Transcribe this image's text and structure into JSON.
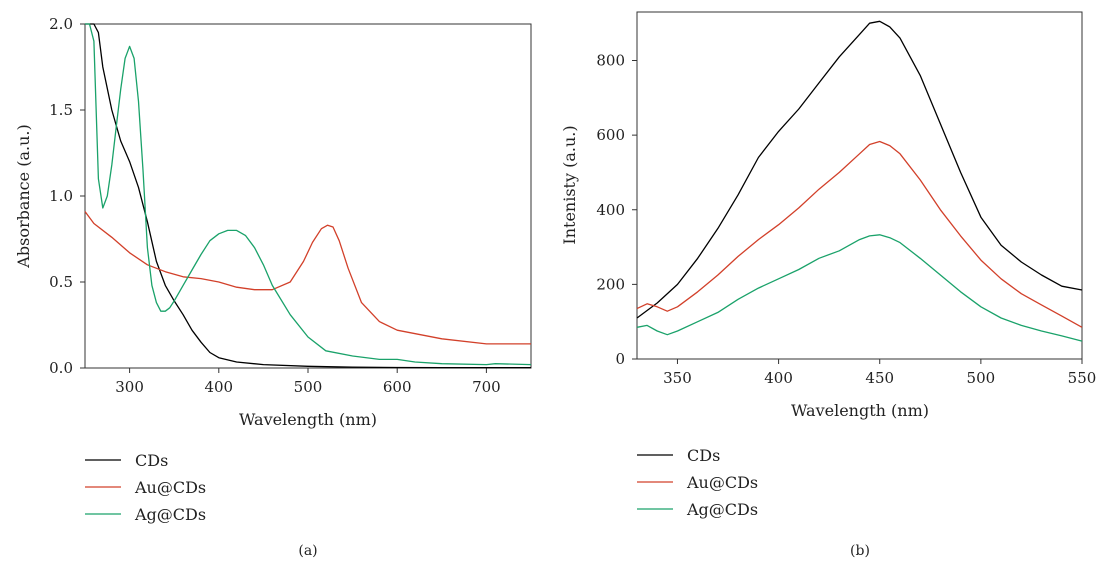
{
  "chart_data": [
    {
      "type": "line",
      "panel_label": "(a)",
      "xlabel": "Wavelength (nm)",
      "ylabel": "Absorbance (a.u.)",
      "xlim": [
        250,
        750
      ],
      "ylim": [
        0,
        2.0
      ],
      "xticks": [
        300,
        400,
        500,
        600,
        700
      ],
      "yticks": [
        0.0,
        0.5,
        1.0,
        1.5,
        2.0
      ],
      "ytick_labels": [
        "0.0",
        "0.5",
        "1.0",
        "1.5",
        "2.0"
      ],
      "legend_position": "below-left",
      "series": [
        {
          "name": "CDs",
          "color": "#000000",
          "x": [
            250,
            255,
            260,
            265,
            270,
            280,
            290,
            300,
            310,
            320,
            330,
            340,
            350,
            360,
            370,
            380,
            390,
            400,
            420,
            450,
            500,
            550,
            600,
            650,
            700,
            750
          ],
          "y": [
            2.0,
            2.0,
            2.0,
            1.95,
            1.75,
            1.5,
            1.32,
            1.2,
            1.05,
            0.85,
            0.62,
            0.48,
            0.39,
            0.31,
            0.22,
            0.15,
            0.09,
            0.06,
            0.035,
            0.02,
            0.01,
            0.005,
            0.003,
            0.002,
            0.002,
            0.002
          ]
        },
        {
          "name": "Au@CDs",
          "color": "#d2402a",
          "x": [
            250,
            260,
            280,
            300,
            320,
            340,
            360,
            380,
            400,
            420,
            440,
            460,
            480,
            495,
            505,
            515,
            522,
            528,
            535,
            545,
            560,
            580,
            600,
            650,
            700,
            750
          ],
          "y": [
            0.91,
            0.84,
            0.76,
            0.67,
            0.6,
            0.56,
            0.53,
            0.52,
            0.5,
            0.47,
            0.455,
            0.455,
            0.5,
            0.62,
            0.73,
            0.81,
            0.83,
            0.82,
            0.74,
            0.58,
            0.38,
            0.27,
            0.22,
            0.17,
            0.14,
            0.14
          ]
        },
        {
          "name": "Ag@CDs",
          "color": "#1aa26a",
          "x": [
            250,
            255,
            260,
            265,
            270,
            275,
            280,
            285,
            290,
            295,
            300,
            305,
            310,
            315,
            320,
            325,
            330,
            335,
            340,
            345,
            350,
            360,
            370,
            380,
            390,
            400,
            410,
            420,
            430,
            440,
            450,
            460,
            480,
            500,
            520,
            550,
            580,
            600,
            620,
            650,
            700,
            710,
            750
          ],
          "y": [
            2.0,
            2.0,
            1.9,
            1.1,
            0.93,
            1.0,
            1.18,
            1.4,
            1.62,
            1.8,
            1.87,
            1.8,
            1.55,
            1.15,
            0.7,
            0.48,
            0.38,
            0.33,
            0.33,
            0.35,
            0.39,
            0.48,
            0.57,
            0.66,
            0.74,
            0.78,
            0.8,
            0.8,
            0.77,
            0.7,
            0.6,
            0.48,
            0.31,
            0.18,
            0.1,
            0.07,
            0.05,
            0.05,
            0.035,
            0.025,
            0.02,
            0.025,
            0.02
          ]
        }
      ]
    },
    {
      "type": "line",
      "panel_label": "(b)",
      "xlabel": "Wavelength (nm)",
      "ylabel": "Intenisty (a.u.)",
      "xlim": [
        330,
        550
      ],
      "ylim": [
        0,
        930
      ],
      "xticks": [
        350,
        400,
        450,
        500,
        550
      ],
      "yticks": [
        0,
        200,
        400,
        600,
        800
      ],
      "legend_position": "below-left",
      "series": [
        {
          "name": "CDs",
          "color": "#000000",
          "x": [
            330,
            340,
            350,
            360,
            370,
            380,
            390,
            400,
            410,
            420,
            430,
            440,
            445,
            450,
            455,
            460,
            470,
            480,
            490,
            500,
            510,
            520,
            530,
            540,
            550
          ],
          "y": [
            110,
            150,
            200,
            270,
            350,
            440,
            540,
            610,
            670,
            740,
            810,
            870,
            900,
            905,
            890,
            860,
            760,
            630,
            500,
            380,
            305,
            260,
            225,
            195,
            185
          ]
        },
        {
          "name": "Au@CDs",
          "color": "#d2402a",
          "x": [
            330,
            335,
            340,
            345,
            350,
            360,
            370,
            380,
            390,
            400,
            410,
            420,
            430,
            440,
            445,
            450,
            455,
            460,
            470,
            480,
            490,
            500,
            510,
            520,
            530,
            540,
            550
          ],
          "y": [
            135,
            148,
            140,
            128,
            140,
            180,
            225,
            275,
            320,
            360,
            405,
            455,
            500,
            550,
            575,
            583,
            572,
            550,
            480,
            400,
            330,
            265,
            215,
            175,
            145,
            115,
            85
          ]
        },
        {
          "name": "Ag@CDs",
          "color": "#1aa26a",
          "x": [
            330,
            335,
            340,
            345,
            350,
            360,
            370,
            380,
            390,
            400,
            410,
            420,
            430,
            440,
            445,
            450,
            455,
            460,
            470,
            480,
            490,
            500,
            510,
            520,
            530,
            540,
            550
          ],
          "y": [
            85,
            90,
            75,
            65,
            75,
            100,
            125,
            160,
            190,
            215,
            240,
            270,
            290,
            320,
            330,
            333,
            325,
            312,
            270,
            225,
            180,
            140,
            110,
            90,
            75,
            62,
            48
          ]
        }
      ]
    }
  ]
}
